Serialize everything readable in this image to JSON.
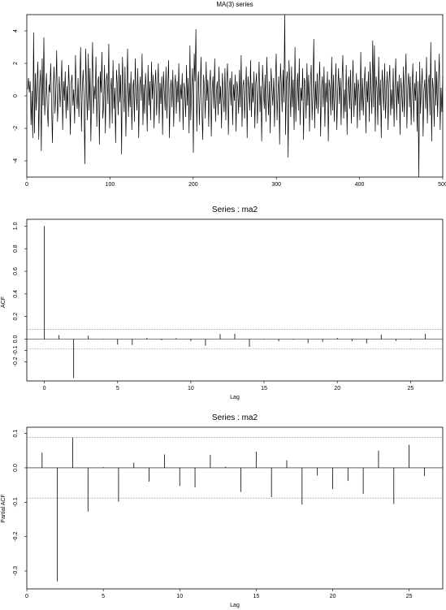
{
  "chart_data": [
    {
      "type": "line",
      "title": "MA(3) series",
      "xlabel": "",
      "ylabel": "",
      "xlim": [
        0,
        500
      ],
      "ylim": [
        -5,
        5
      ],
      "xticks": [
        0,
        100,
        200,
        300,
        400,
        500
      ],
      "xtick_labels": [
        "0",
        "100",
        "200",
        "300",
        "400",
        "500"
      ],
      "yticks": [
        -4,
        -2,
        0,
        2,
        4
      ],
      "ytick_labels": [
        "-4",
        "-2",
        "0",
        "2",
        "4"
      ],
      "grid": false,
      "legend": "none",
      "series": [
        {
          "n": 500,
          "values": [
            0.4,
            1.1,
            0.2,
            0.9,
            -1.8,
            0.3,
            -2.6,
            3.9,
            -2.3,
            1.4,
            -0.9,
            0.8,
            2.1,
            -2.7,
            0.5,
            1.6,
            -3.4,
            2.3,
            -0.6,
            3.6,
            -1.2,
            0.1,
            1.4,
            -0.8,
            -1.9,
            0.7,
            0.2,
            2.0,
            -0.5,
            -2.9,
            0.6,
            1.8,
            -1.1,
            0.3,
            2.8,
            -1.6,
            -0.2,
            1.2,
            -0.7,
            0.4,
            2.2,
            -2.1,
            0.9,
            -0.3,
            1.5,
            -1.4,
            0.6,
            -0.9,
            1.9,
            0.2,
            -2.4,
            0.8,
            1.3,
            -0.6,
            0.4,
            -1.7,
            2.5,
            0.1,
            -0.8,
            1.1,
            -1.3,
            0.7,
            3.0,
            -2.2,
            0.5,
            1.6,
            -0.4,
            -4.2,
            2.9,
            0.3,
            -1.5,
            2.6,
            -0.9,
            1.7,
            -2.8,
            0.4,
            3.3,
            -1.1,
            0.6,
            -0.2,
            2.4,
            -1.9,
            0.8,
            1.2,
            -3.0,
            1.5,
            0.2,
            2.7,
            -1.4,
            -0.6,
            1.9,
            -2.3,
            0.9,
            1.4,
            -0.5,
            3.2,
            -2.0,
            0.3,
            1.1,
            -1.7,
            2.2,
            -0.8,
            0.5,
            -2.9,
            1.6,
            0.7,
            -1.2,
            2.0,
            -0.4,
            1.3,
            -3.6,
            2.4,
            0.6,
            -1.0,
            1.8,
            -2.5,
            0.2,
            2.9,
            -1.3,
            0.8,
            -0.7,
            1.5,
            -2.1,
            0.4,
            1.0,
            -1.6,
            2.3,
            0.1,
            -0.9,
            1.7,
            -2.6,
            0.5,
            1.2,
            -0.3,
            2.6,
            -1.8,
            0.7,
            -1.1,
            1.4,
            0.3,
            -2.2,
            1.9,
            -0.6,
            0.9,
            -1.5,
            2.1,
            -0.2,
            1.3,
            -2.0,
            0.6,
            1.6,
            -1.2,
            0.4,
            2.0,
            -1.7,
            0.8,
            -0.5,
            1.2,
            -2.4,
            1.5,
            0.2,
            -0.9,
            1.8,
            -1.4,
            0.6,
            2.2,
            -2.6,
            0.3,
            1.0,
            -0.7,
            1.6,
            -1.9,
            0.5,
            1.3,
            -1.1,
            0.9,
            -0.4,
            2.0,
            -1.6,
            0.7,
            -0.2,
            1.4,
            -2.1,
            0.8,
            0.3,
            -1.3,
            1.9,
            -0.6,
            1.1,
            -2.3,
            3.1,
            -1.5,
            0.4,
            1.7,
            -3.5,
            2.6,
            0.9,
            4.1,
            -2.2,
            0.6,
            1.5,
            -1.8,
            0.2,
            2.4,
            -0.9,
            -2.7,
            1.3,
            0.5,
            -1.4,
            2.1,
            -0.3,
            1.0,
            -1.9,
            0.7,
            1.6,
            -2.5,
            0.4,
            1.2,
            -0.8,
            2.3,
            -1.6,
            0.3,
            0.9,
            -1.2,
            1.8,
            -0.5,
            0.6,
            -2.0,
            1.4,
            0.2,
            -1.0,
            1.7,
            -1.5,
            0.8,
            2.0,
            -2.4,
            0.5,
            1.1,
            -0.6,
            1.5,
            -1.8,
            0.7,
            -0.3,
            1.3,
            -2.2,
            0.9,
            0.4,
            -1.1,
            1.6,
            -0.7,
            2.5,
            -1.9,
            0.6,
            1.0,
            -1.4,
            0.3,
            1.8,
            -2.6,
            1.2,
            0.5,
            -0.9,
            2.2,
            -1.3,
            0.8,
            -0.4,
            1.5,
            -2.0,
            0.7,
            1.4,
            -1.7,
            0.2,
            2.1,
            -1.0,
            0.6,
            -2.8,
            1.9,
            0.4,
            -0.8,
            1.3,
            -1.6,
            2.4,
            0.3,
            -1.2,
            0.9,
            -2.3,
            1.7,
            0.5,
            -0.6,
            1.1,
            -1.9,
            0.8,
            2.6,
            -1.5,
            0.2,
            1.2,
            -3.0,
            2.0,
            0.7,
            -1.0,
            1.6,
            -0.4,
            5.0,
            -2.4,
            0.9,
            1.5,
            -3.8,
            2.2,
            0.6,
            -1.3,
            1.8,
            -0.7,
            1.0,
            -2.1,
            3.0,
            -1.6,
            0.4,
            1.4,
            -0.9,
            2.3,
            -1.8,
            0.5,
            -0.3,
            1.7,
            -2.7,
            1.1,
            0.8,
            -1.4,
            2.0,
            -0.6,
            1.3,
            -2.2,
            0.7,
            1.9,
            -1.5,
            0.3,
            3.5,
            -2.0,
            0.9,
            -0.8,
            1.4,
            -1.1,
            0.6,
            2.1,
            -2.5,
            0.4,
            1.2,
            -0.7,
            1.8,
            -1.9,
            0.8,
            -0.4,
            1.5,
            -2.8,
            1.0,
            0.5,
            -1.2,
            2.4,
            -0.9,
            1.3,
            -1.6,
            0.6,
            2.0,
            -2.1,
            0.3,
            1.7,
            -0.5,
            1.1,
            -1.8,
            0.9,
            2.5,
            -1.4,
            0.4,
            -1.0,
            1.9,
            -2.4,
            0.7,
            1.2,
            -0.8,
            1.6,
            -1.7,
            0.5,
            2.2,
            -1.3,
            0.8,
            -0.6,
            1.4,
            -2.0,
            1.0,
            0.3,
            -1.5,
            2.7,
            -0.9,
            1.1,
            -1.2,
            0.6,
            1.8,
            -2.3,
            0.9,
            -0.4,
            1.5,
            -1.6,
            2.1,
            0.4,
            -1.1,
            3.4,
            -0.7,
            3.1,
            -2.2,
            1.2,
            0.5,
            -1.8,
            2.4,
            -0.6,
            1.0,
            -2.6,
            1.6,
            0.7,
            -0.9,
            2.0,
            -1.4,
            0.3,
            1.5,
            -2.1,
            0.8,
            1.9,
            -1.2,
            0.4,
            -0.8,
            1.7,
            -1.9,
            0.6,
            2.3,
            -1.5,
            0.9,
            -0.5,
            1.3,
            -2.4,
            1.1,
            0.2,
            -1.0,
            1.8,
            -1.3,
            0.7,
            2.6,
            -2.0,
            0.5,
            1.4,
            -0.7,
            1.2,
            -1.8,
            0.4,
            2.0,
            -1.6,
            0.8,
            -0.3,
            1.5,
            -2.2,
            0.9,
            -5.0,
            2.1,
            -1.1,
            0.6,
            1.7,
            -2.5,
            0.3,
            1.0,
            -0.8,
            2.4,
            -1.7,
            0.7,
            1.3,
            -1.2,
            3.3,
            -2.8,
            1.1,
            0.4,
            -1.9,
            2.2,
            -0.6,
            1.5,
            -1.3,
            0.8,
            2.6,
            -2.1,
            0.5,
            -1.0,
            1.2
          ]
        }
      ]
    },
    {
      "type": "bar",
      "title": "Series : ma2",
      "xlabel": "Lag",
      "ylabel": "ACF",
      "xlim": [
        -1.2,
        27.2
      ],
      "ylim": [
        -0.37,
        1.06
      ],
      "xticks": [
        0,
        5,
        10,
        15,
        20,
        25
      ],
      "xtick_labels": [
        "0",
        "5",
        "10",
        "15",
        "20",
        "25"
      ],
      "yticks": [
        -0.2,
        -0.1,
        0.0,
        0.2,
        0.4,
        0.6,
        0.8,
        1.0
      ],
      "ytick_labels": [
        "-0.2",
        "-0.1",
        "0.0",
        "0.2",
        "0.4",
        "0.6",
        "0.8",
        "1.0"
      ],
      "conf_limit": 0.088,
      "grid": false,
      "legend": "none",
      "categories": [
        0,
        1,
        2,
        3,
        4,
        5,
        6,
        7,
        8,
        9,
        10,
        11,
        12,
        13,
        14,
        15,
        16,
        17,
        18,
        19,
        20,
        21,
        22,
        23,
        24,
        25,
        26
      ],
      "values": [
        1.0,
        0.036,
        -0.345,
        0.031,
        -0.004,
        -0.048,
        -0.052,
        0.012,
        -0.011,
        0.009,
        -0.018,
        -0.058,
        0.045,
        0.047,
        -0.068,
        -0.004,
        -0.019,
        -0.006,
        -0.036,
        -0.024,
        0.011,
        -0.019,
        -0.038,
        0.041,
        -0.016,
        -0.007,
        0.046
      ]
    },
    {
      "type": "bar",
      "title": "Series : ma2",
      "xlabel": "Lag",
      "ylabel": "Partial ACF",
      "xlim": [
        0,
        27.2
      ],
      "ylim": [
        -0.352,
        0.118
      ],
      "xticks": [
        0,
        5,
        10,
        15,
        20,
        25
      ],
      "xtick_labels": [
        "0",
        "5",
        "10",
        "15",
        "20",
        "25"
      ],
      "yticks": [
        -0.3,
        -0.2,
        -0.1,
        0.0,
        0.1
      ],
      "ytick_labels": [
        "-0.3",
        "-0.2",
        "-0.1",
        "0.0",
        "0.1"
      ],
      "conf_limit": 0.088,
      "grid": false,
      "legend": "none",
      "categories": [
        1,
        2,
        3,
        4,
        5,
        6,
        7,
        8,
        9,
        10,
        11,
        12,
        13,
        14,
        15,
        16,
        17,
        18,
        19,
        20,
        21,
        22,
        23,
        24,
        25,
        26
      ],
      "values": [
        0.044,
        -0.33,
        0.088,
        -0.127,
        0.002,
        -0.098,
        0.015,
        -0.04,
        0.039,
        -0.053,
        -0.057,
        0.038,
        0.003,
        -0.07,
        0.047,
        -0.085,
        0.022,
        -0.107,
        -0.022,
        -0.062,
        -0.038,
        -0.076,
        0.05,
        -0.105,
        0.067,
        -0.024
      ]
    }
  ]
}
